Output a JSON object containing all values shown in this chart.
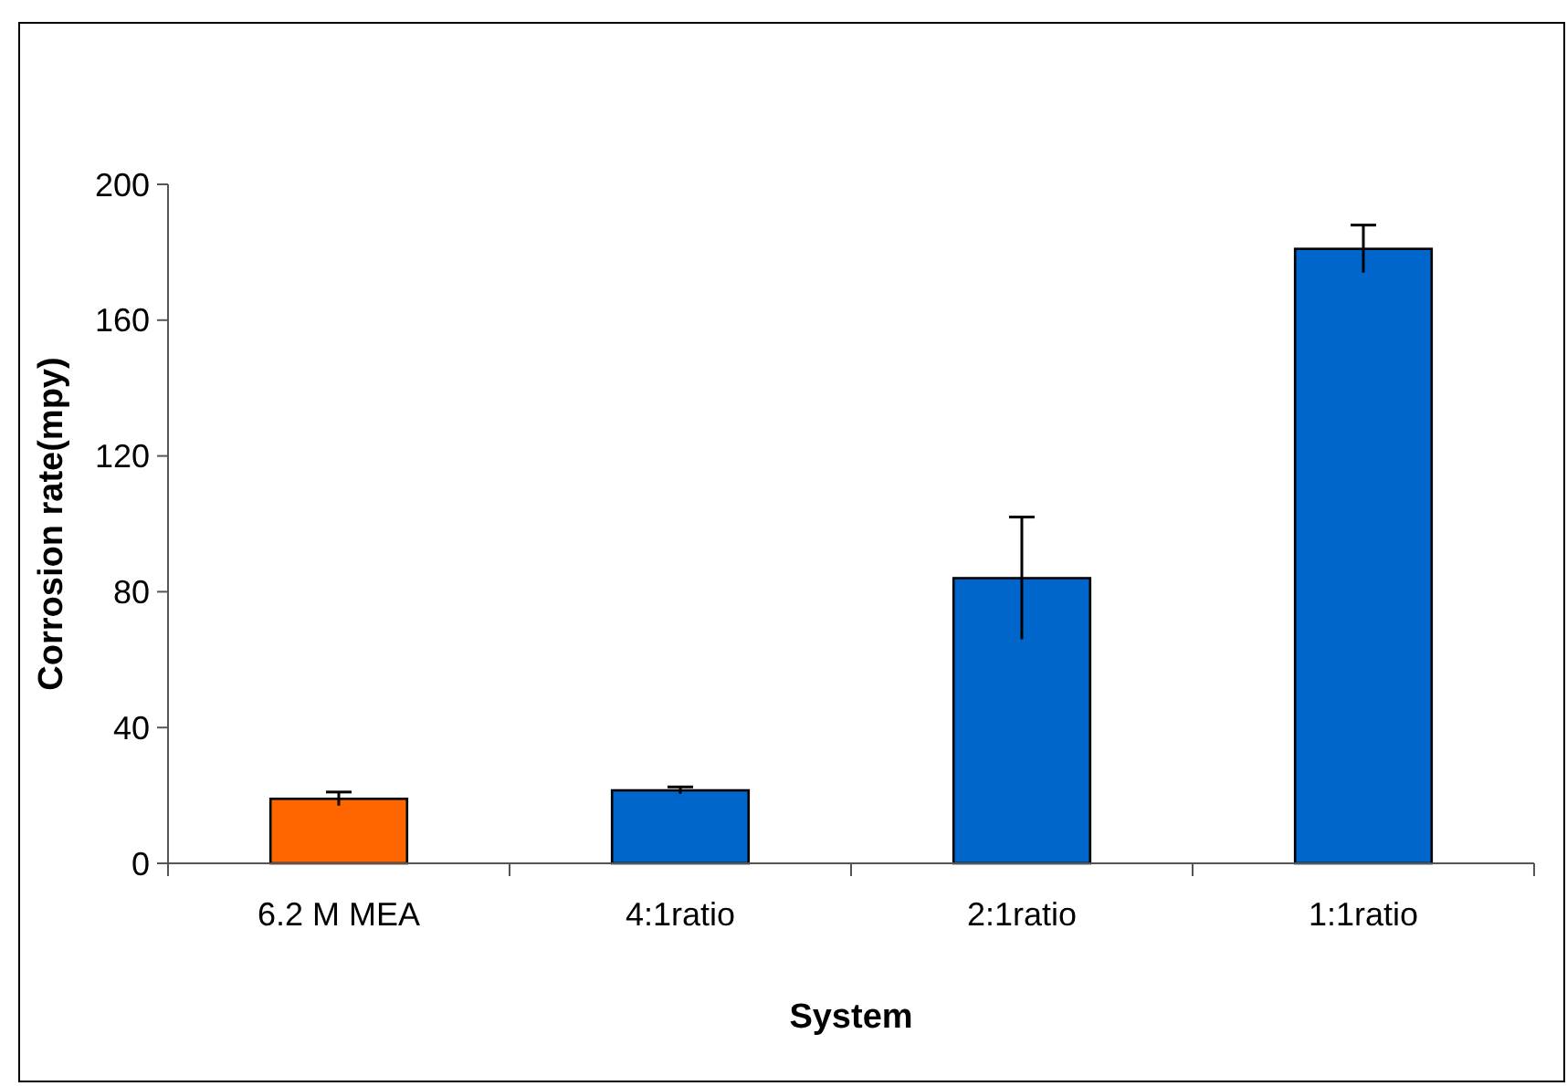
{
  "chart_data": {
    "type": "bar",
    "xlabel": "System",
    "ylabel": "Corrosion rate(mpy)",
    "categories": [
      "6.2 M MEA",
      "4:1ratio",
      "2:1ratio",
      "1:1ratio"
    ],
    "values": [
      19,
      21.5,
      84,
      181
    ],
    "colors": [
      "#ff6600",
      "#0066cc",
      "#0066cc",
      "#0066cc"
    ],
    "errors": [
      2,
      1,
      18,
      7
    ],
    "ylim": [
      0,
      200
    ],
    "yticks": [
      0,
      40,
      80,
      120,
      160,
      200
    ],
    "grid": false
  }
}
